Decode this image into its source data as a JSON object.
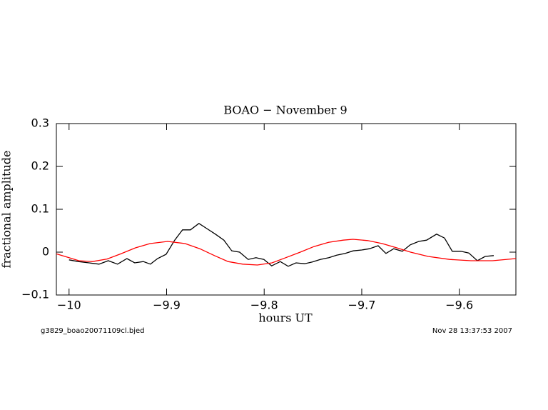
{
  "chart_data": {
    "type": "line",
    "title": "BOAO − November 9",
    "x_label": "hours UT",
    "y_label": "fractional amplitude",
    "footer_left": "g3829_boao20071109cl.bjed",
    "footer_right": "Nov 28 13:37:53 2007",
    "xlim": [
      -10.013,
      -9.542
    ],
    "ylim": [
      -0.1,
      0.3
    ],
    "xticks": [
      {
        "value": -10,
        "label": "−10"
      },
      {
        "value": -9.9,
        "label": "−9.9"
      },
      {
        "value": -9.8,
        "label": "−9.8"
      },
      {
        "value": -9.7,
        "label": "−9.7"
      },
      {
        "value": -9.6,
        "label": "−9.6"
      }
    ],
    "yticks": [
      {
        "value": -0.1,
        "label": "−0.1"
      },
      0,
      0.1,
      0.2,
      0.3
    ],
    "series": [
      {
        "color": "#000000",
        "x": [
          -10.0,
          -9.9905,
          -9.9795,
          -9.9693,
          -9.9598,
          -9.9503,
          -9.9407,
          -9.9327,
          -9.9239,
          -9.9166,
          -9.9093,
          -9.9005,
          -9.8917,
          -9.8837,
          -9.8756,
          -9.8669,
          -9.8588,
          -9.85,
          -9.8413,
          -9.8332,
          -9.8252,
          -9.8164,
          -9.8084,
          -9.8003,
          -9.7923,
          -9.7835,
          -9.7754,
          -9.7674,
          -9.7586,
          -9.7506,
          -9.7425,
          -9.7337,
          -9.7257,
          -9.7169,
          -9.7088,
          -9.7001,
          -9.692,
          -9.6832,
          -9.6752,
          -9.6672,
          -9.6584,
          -9.6503,
          -9.6416,
          -9.6335,
          -9.6233,
          -9.6152,
          -9.6072,
          -9.5984,
          -9.5903,
          -9.5815,
          -9.5735,
          -9.5647
        ],
        "values": [
          -0.018,
          -0.022,
          -0.025,
          -0.028,
          -0.02,
          -0.028,
          -0.015,
          -0.025,
          -0.022,
          -0.028,
          -0.015,
          -0.005,
          0.028,
          0.052,
          0.052,
          0.067,
          0.055,
          0.042,
          0.028,
          0.003,
          0.0,
          -0.017,
          -0.013,
          -0.017,
          -0.032,
          -0.022,
          -0.033,
          -0.025,
          -0.027,
          -0.023,
          -0.017,
          -0.013,
          -0.007,
          -0.003,
          0.003,
          0.005,
          0.008,
          0.015,
          -0.003,
          0.008,
          0.002,
          0.017,
          0.025,
          0.028,
          0.042,
          0.033,
          0.002,
          0.002,
          -0.002,
          -0.02,
          -0.01,
          -0.008
        ]
      },
      {
        "color": "#ff0000",
        "x": [
          -10.013,
          -10.0,
          -9.99,
          -9.976,
          -9.961,
          -9.947,
          -9.932,
          -9.917,
          -9.899,
          -9.881,
          -9.866,
          -9.851,
          -9.837,
          -9.822,
          -9.807,
          -9.792,
          -9.778,
          -9.763,
          -9.749,
          -9.734,
          -9.719,
          -9.709,
          -9.694,
          -9.679,
          -9.664,
          -9.65,
          -9.632,
          -9.61,
          -9.588,
          -9.566,
          -9.542
        ],
        "values": [
          -0.004,
          -0.013,
          -0.02,
          -0.022,
          -0.016,
          -0.004,
          0.01,
          0.02,
          0.025,
          0.02,
          0.008,
          -0.008,
          -0.022,
          -0.028,
          -0.03,
          -0.025,
          -0.013,
          0.0,
          0.013,
          0.023,
          0.028,
          0.03,
          0.027,
          0.02,
          0.01,
          0.0,
          -0.01,
          -0.017,
          -0.02,
          -0.02,
          -0.015
        ]
      }
    ]
  }
}
